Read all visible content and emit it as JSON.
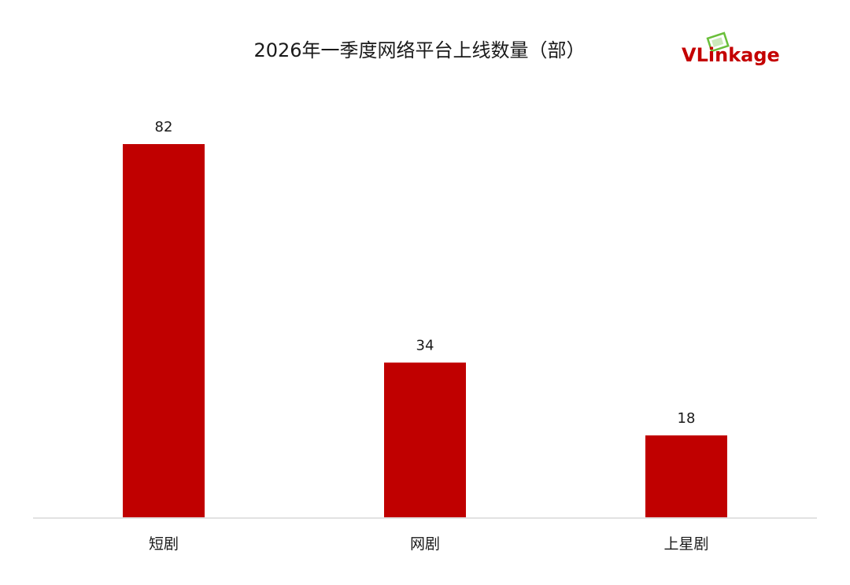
{
  "logo": {
    "text_prefix": "VLin",
    "text_suffix": "kage",
    "accent_color": "#c40000",
    "icon_color": "#6abf3a"
  },
  "chart_data": {
    "type": "bar",
    "title": "2026年一季度网络平台上线数量（部）",
    "categories": [
      "短剧",
      "网剧",
      "上星剧"
    ],
    "values": [
      82,
      34,
      18
    ],
    "value_labels": [
      "82",
      "34",
      "18"
    ],
    "ylim": [
      0,
      82
    ],
    "bar_color": "#c00000",
    "axis_color": "#d9d9d9",
    "grid": false,
    "legend": "none",
    "xlabel": "",
    "ylabel": ""
  }
}
